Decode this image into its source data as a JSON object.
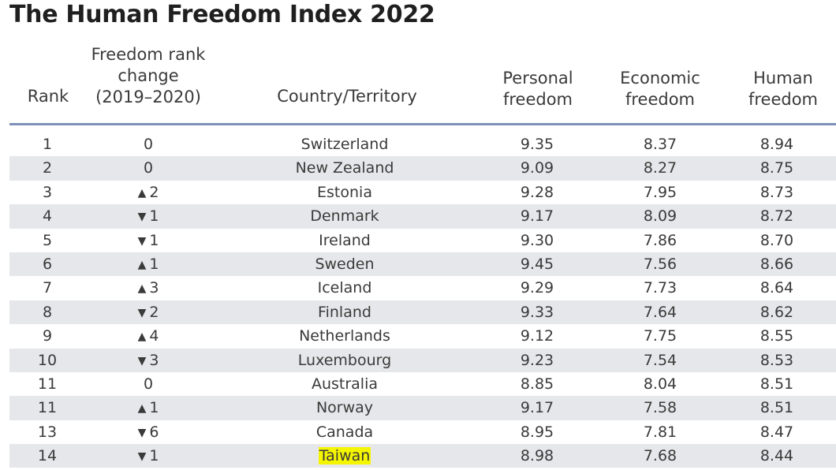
{
  "title": "The Human Freedom Index 2022",
  "headers": {
    "rank": "Rank",
    "change_line1": "Freedom rank",
    "change_line2": "change",
    "change_line3": "(2019–2020)",
    "country": "Country/Territory",
    "personal_line1": "Personal",
    "personal_line2": "freedom",
    "economic_line1": "Economic",
    "economic_line2": "freedom",
    "human_line1": "Human",
    "human_line2": "freedom"
  },
  "colors": {
    "rule": "#7f8fb8",
    "row_shade": "#e6e7ea",
    "highlight": "#f5f500"
  },
  "rows": [
    {
      "rank": "1",
      "arrow": "",
      "change": "0",
      "country": "Switzerland",
      "personal": "9.35",
      "economic": "8.37",
      "human": "8.94",
      "highlight": false
    },
    {
      "rank": "2",
      "arrow": "",
      "change": "0",
      "country": "New Zealand",
      "personal": "9.09",
      "economic": "8.27",
      "human": "8.75",
      "highlight": false
    },
    {
      "rank": "3",
      "arrow": "▲",
      "change": "2",
      "country": "Estonia",
      "personal": "9.28",
      "economic": "7.95",
      "human": "8.73",
      "highlight": false
    },
    {
      "rank": "4",
      "arrow": "▼",
      "change": "1",
      "country": "Denmark",
      "personal": "9.17",
      "economic": "8.09",
      "human": "8.72",
      "highlight": false
    },
    {
      "rank": "5",
      "arrow": "▼",
      "change": "1",
      "country": "Ireland",
      "personal": "9.30",
      "economic": "7.86",
      "human": "8.70",
      "highlight": false
    },
    {
      "rank": "6",
      "arrow": "▲",
      "change": "1",
      "country": "Sweden",
      "personal": "9.45",
      "economic": "7.56",
      "human": "8.66",
      "highlight": false
    },
    {
      "rank": "7",
      "arrow": "▲",
      "change": "3",
      "country": "Iceland",
      "personal": "9.29",
      "economic": "7.73",
      "human": "8.64",
      "highlight": false
    },
    {
      "rank": "8",
      "arrow": "▼",
      "change": "2",
      "country": "Finland",
      "personal": "9.33",
      "economic": "7.64",
      "human": "8.62",
      "highlight": false
    },
    {
      "rank": "9",
      "arrow": "▲",
      "change": "4",
      "country": "Netherlands",
      "personal": "9.12",
      "economic": "7.75",
      "human": "8.55",
      "highlight": false
    },
    {
      "rank": "10",
      "arrow": "▼",
      "change": "3",
      "country": "Luxembourg",
      "personal": "9.23",
      "economic": "7.54",
      "human": "8.53",
      "highlight": false
    },
    {
      "rank": "11",
      "arrow": "",
      "change": "0",
      "country": "Australia",
      "personal": "8.85",
      "economic": "8.04",
      "human": "8.51",
      "highlight": false
    },
    {
      "rank": "11",
      "arrow": "▲",
      "change": "1",
      "country": "Norway",
      "personal": "9.17",
      "economic": "7.58",
      "human": "8.51",
      "highlight": false
    },
    {
      "rank": "13",
      "arrow": "▼",
      "change": "6",
      "country": "Canada",
      "personal": "8.95",
      "economic": "7.81",
      "human": "8.47",
      "highlight": false
    },
    {
      "rank": "14",
      "arrow": "▼",
      "change": "1",
      "country": "Taiwan",
      "personal": "8.98",
      "economic": "7.68",
      "human": "8.44",
      "highlight": true
    }
  ]
}
